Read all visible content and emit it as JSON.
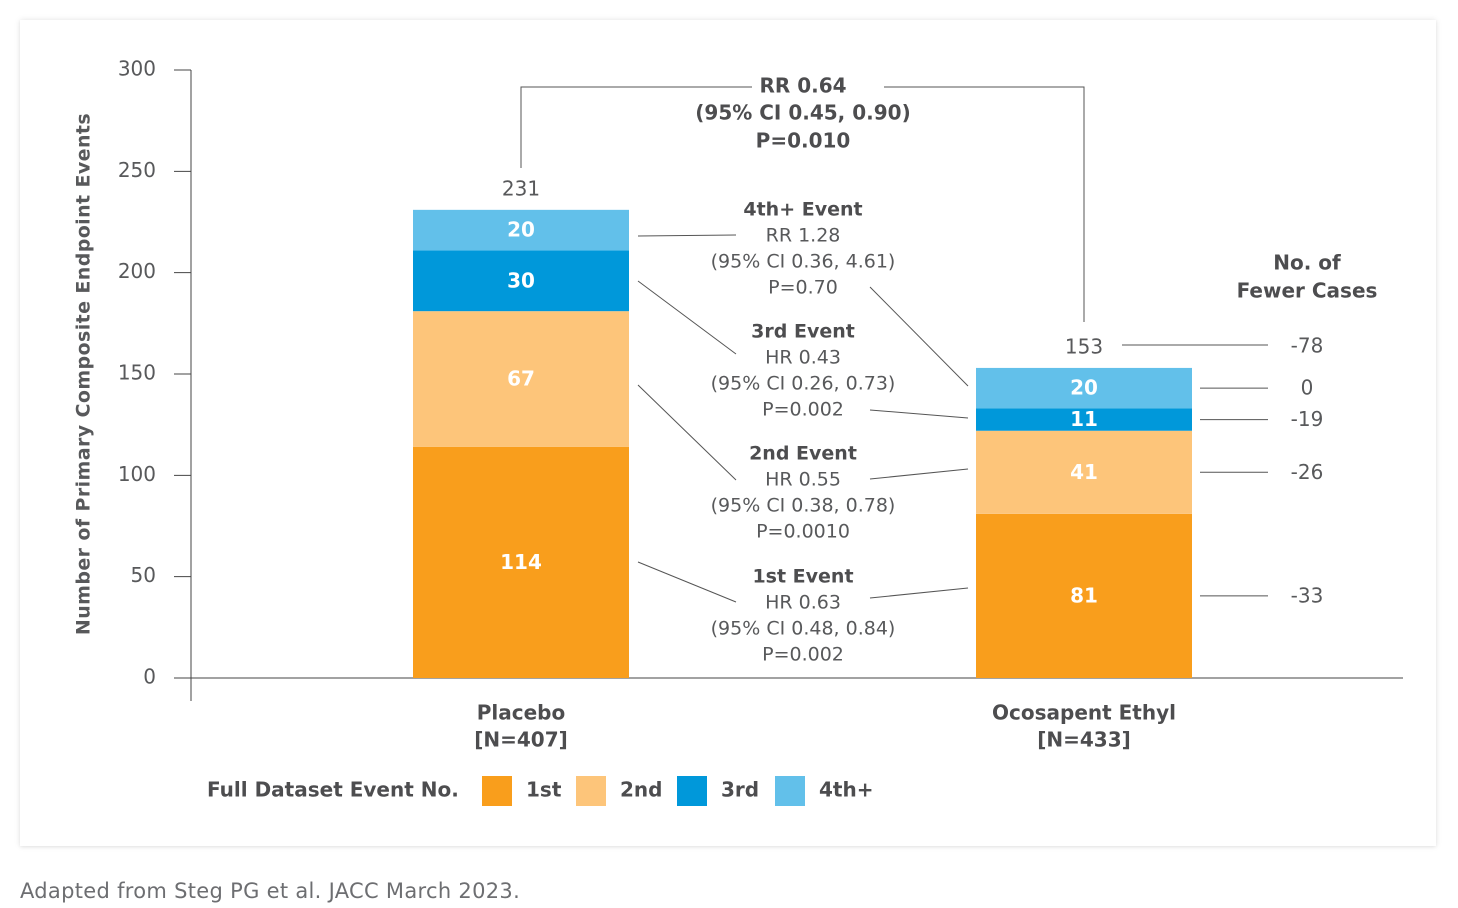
{
  "chart_data": {
    "type": "bar",
    "stacked": true,
    "ylabel": "Number of Primary Composite Endpoint Events",
    "ylim": [
      0,
      300
    ],
    "yticks": [
      0,
      50,
      100,
      150,
      200,
      250,
      300
    ],
    "grid": false,
    "categories": [
      {
        "name": "Placebo",
        "sub": "[N=407]",
        "total": "231"
      },
      {
        "name": "Ocosapent Ethyl",
        "sub": "[N=433]",
        "total": "153"
      }
    ],
    "series": [
      {
        "name": "1st",
        "color": "#f99e1c",
        "values": [
          114,
          81
        ],
        "fewer": "-33"
      },
      {
        "name": "2nd",
        "color": "#fdc57a",
        "values": [
          67,
          41
        ],
        "fewer": "-26"
      },
      {
        "name": "3rd",
        "color": "#0098da",
        "values": [
          30,
          11
        ],
        "fewer": "-19"
      },
      {
        "name": "4th+",
        "color": "#62c0ea",
        "values": [
          20,
          20
        ],
        "fewer": "0"
      }
    ],
    "total_fewer": "-78",
    "fewer_header": [
      "No. of",
      "Fewer Cases"
    ],
    "legend_title": "Full Dataset Event No.",
    "overall_stat": [
      "RR 0.64",
      "(95% CI 0.45, 0.90)",
      "P=0.010"
    ],
    "event_stats": [
      {
        "title": "4th+ Event",
        "lines": [
          "RR 1.28",
          "(95% CI 0.36, 4.61)",
          "P=0.70"
        ]
      },
      {
        "title": "3rd Event",
        "lines": [
          "HR 0.43",
          "(95% CI 0.26, 0.73)",
          "P=0.002"
        ]
      },
      {
        "title": "2nd Event",
        "lines": [
          "HR 0.55",
          "(95% CI 0.38, 0.78)",
          "P=0.0010"
        ]
      },
      {
        "title": "1st Event",
        "lines": [
          "HR 0.63",
          "(95% CI 0.48, 0.84)",
          "P=0.002"
        ]
      }
    ]
  },
  "footnote": "Adapted from Steg PG et al. JACC March 2023."
}
